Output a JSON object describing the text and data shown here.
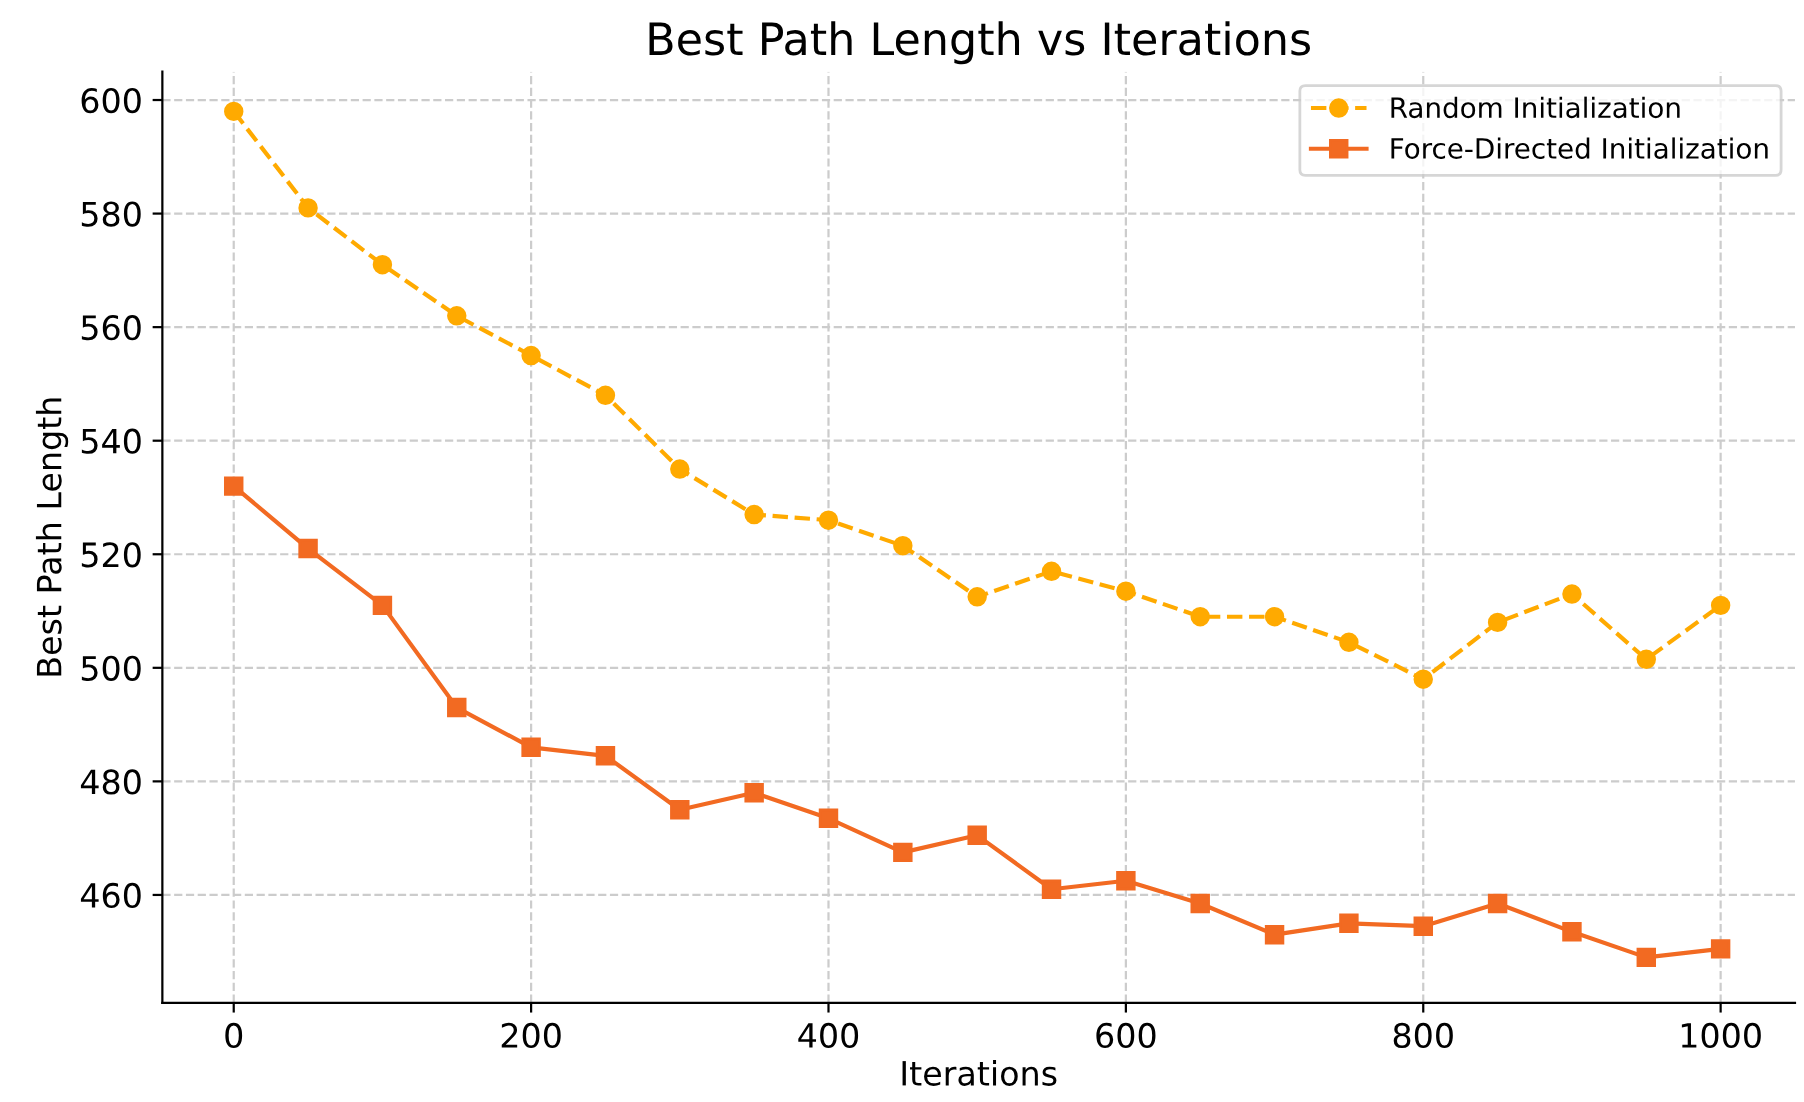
{
  "chart_data": {
    "type": "line",
    "title": "Best Path Length vs Iterations",
    "xlabel": "Iterations",
    "ylabel": "Best Path Length",
    "x": [
      0,
      50,
      100,
      150,
      200,
      250,
      300,
      350,
      400,
      450,
      500,
      550,
      600,
      650,
      700,
      750,
      800,
      850,
      900,
      950,
      1000
    ],
    "series": [
      {
        "name": "Random Initialization",
        "color": "#ffaa00",
        "marker": "circle",
        "line_style": "dashed",
        "values": [
          598,
          581,
          571,
          562,
          555,
          548,
          535,
          527,
          526,
          521.5,
          512.5,
          517,
          513.5,
          509,
          509,
          504.5,
          498,
          508,
          513,
          501.5,
          511
        ]
      },
      {
        "name": "Force-Directed Initialization",
        "color": "#f26a22",
        "marker": "square",
        "line_style": "solid",
        "values": [
          532,
          521,
          511,
          493,
          486,
          484.5,
          475,
          478,
          473.5,
          467.5,
          470.5,
          461,
          462.5,
          458.5,
          453,
          455,
          454.5,
          458.5,
          453.5,
          449,
          450.5
        ]
      }
    ],
    "xlim": [
      -48,
      1050
    ],
    "ylim": [
      441,
      605
    ],
    "xticks": [
      0,
      200,
      400,
      600,
      800,
      1000
    ],
    "yticks": [
      460,
      480,
      500,
      520,
      540,
      560,
      580,
      600
    ],
    "grid": true,
    "legend": "top right"
  }
}
